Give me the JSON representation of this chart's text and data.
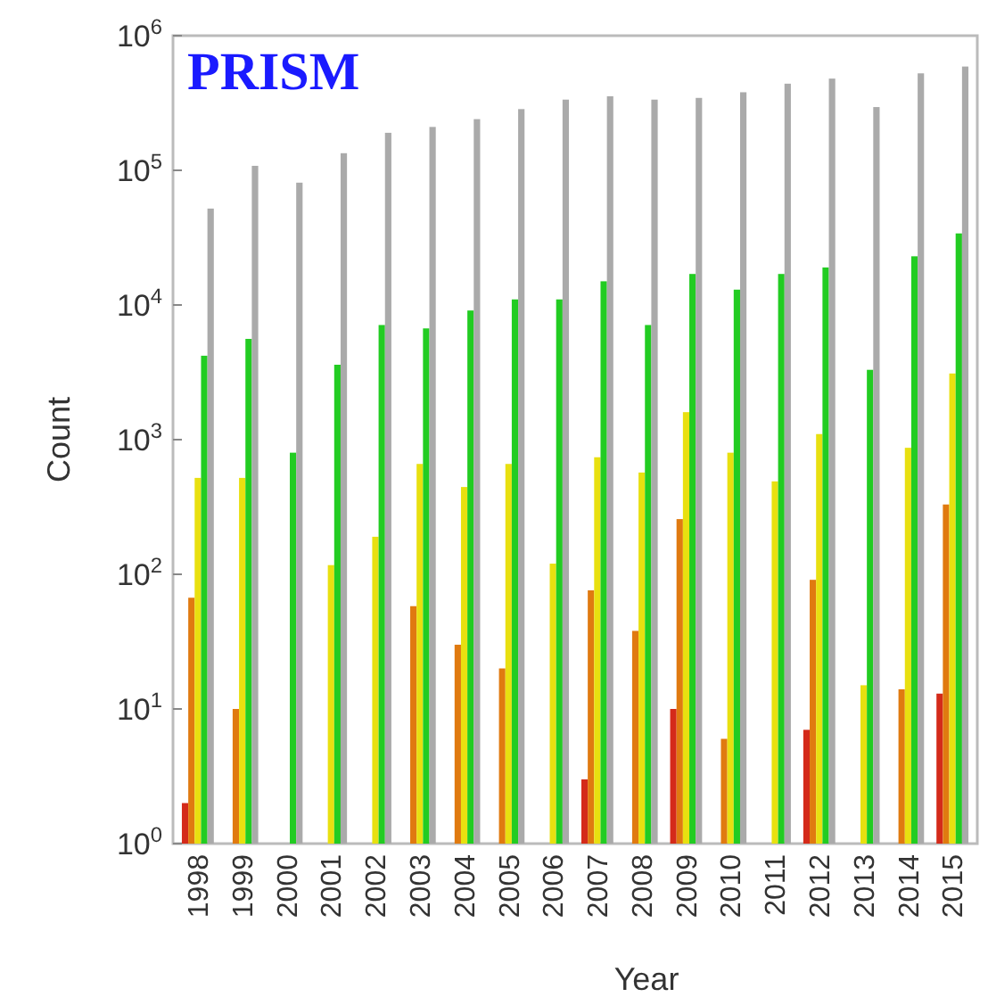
{
  "chart_data": {
    "type": "bar",
    "title": "PRISM",
    "xlabel": "Year",
    "ylabel": "Count",
    "log": true,
    "grid": false,
    "categories": [
      "1998",
      "1999",
      "2000",
      "2001",
      "2002",
      "2003",
      "2004",
      "2005",
      "2006",
      "2007",
      "2008",
      "2009",
      "2010",
      "2011",
      "2012",
      "2013",
      "2014",
      "2015"
    ],
    "ylim": [
      1,
      1000000
    ],
    "yticks": [
      {
        "value": 1,
        "label": "10$^{0}$"
      },
      {
        "value": 10,
        "label": "10$^{1}$"
      },
      {
        "value": 100,
        "label": "10$^{2}$"
      },
      {
        "value": 1000,
        "label": "10$^{3}$"
      },
      {
        "value": 10000,
        "label": "10$^{4}$"
      },
      {
        "value": 100000,
        "label": "10$^{5}$"
      },
      {
        "value": 1000000,
        "label": "10$^{6}$"
      }
    ],
    "series": [
      {
        "color": "#d42a1a",
        "values": [
          2,
          null,
          null,
          null,
          null,
          null,
          null,
          null,
          null,
          3,
          null,
          10,
          null,
          null,
          7,
          null,
          null,
          13
        ]
      },
      {
        "color": "#e07a10",
        "values": [
          67,
          10,
          null,
          null,
          null,
          58,
          30,
          20,
          null,
          76,
          38,
          257,
          6,
          null,
          91,
          null,
          14,
          330
        ]
      },
      {
        "color": "#e8e010",
        "values": [
          520,
          520,
          null,
          117,
          190,
          660,
          445,
          660,
          120,
          740,
          570,
          1600,
          800,
          490,
          1100,
          15,
          870,
          3100
        ]
      },
      {
        "color": "#22cc22",
        "values": [
          4200,
          5600,
          800,
          3600,
          7100,
          6700,
          9100,
          11000,
          11000,
          15000,
          7100,
          17000,
          13000,
          17000,
          19000,
          3300,
          23000,
          34000
        ]
      },
      {
        "color": "#aaaaaa",
        "values": [
          52000,
          108000,
          81000,
          134000,
          190000,
          210000,
          240000,
          285000,
          335000,
          355000,
          335000,
          345000,
          380000,
          440000,
          480000,
          295000,
          525000,
          590000
        ]
      }
    ]
  }
}
